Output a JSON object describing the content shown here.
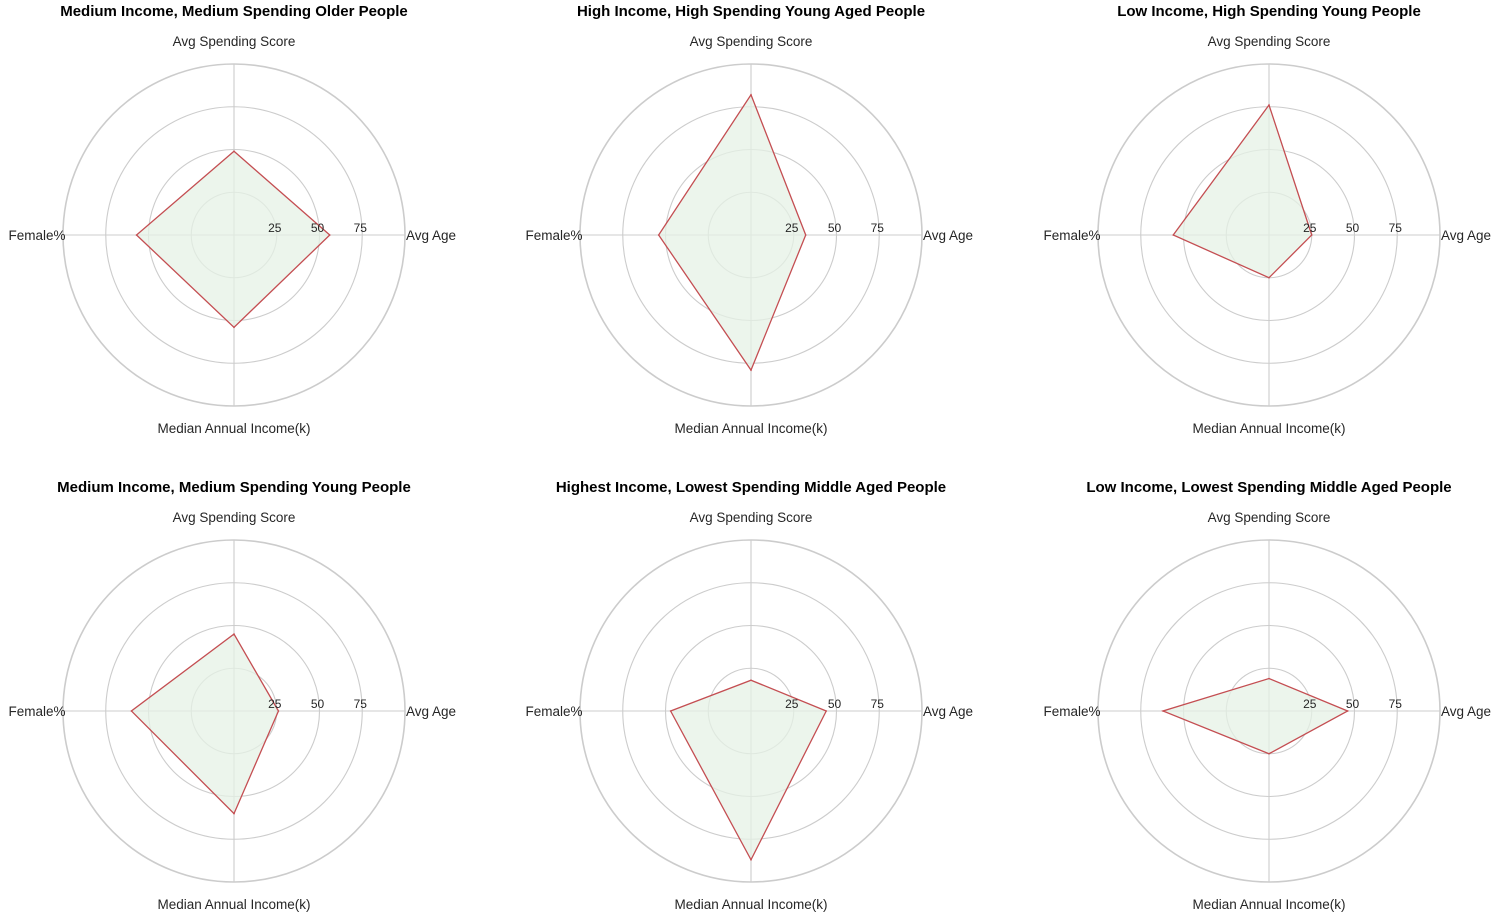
{
  "chart_data": [
    {
      "type": "radar",
      "title": "Medium Income, Medium Spending Older People",
      "axes": [
        "Avg Age",
        "Avg Spending Score",
        "Female%",
        "Median Annual Income(k)"
      ],
      "values": [
        56,
        49,
        57,
        54
      ],
      "r_ticks": [
        "25",
        "50",
        "75"
      ],
      "r_range": [
        0,
        100
      ]
    },
    {
      "type": "radar",
      "title": "High Income, High Spending Young Aged People",
      "axes": [
        "Avg Age",
        "Avg Spending Score",
        "Female%",
        "Median Annual Income(k)"
      ],
      "values": [
        32,
        82,
        54,
        79
      ],
      "r_ticks": [
        "25",
        "50",
        "75"
      ],
      "r_range": [
        0,
        100
      ]
    },
    {
      "type": "radar",
      "title": "Low Income, High Spending Young People",
      "axes": [
        "Avg Age",
        "Avg Spending Score",
        "Female%",
        "Median Annual Income(k)"
      ],
      "values": [
        25,
        76,
        56,
        25
      ],
      "r_ticks": [
        "25",
        "50",
        "75"
      ],
      "r_range": [
        0,
        100
      ]
    },
    {
      "type": "radar",
      "title": "Medium Income, Medium Spending Young People",
      "axes": [
        "Avg Age",
        "Avg Spending Score",
        "Female%",
        "Median Annual Income(k)"
      ],
      "values": [
        26,
        45,
        60,
        60
      ],
      "r_ticks": [
        "25",
        "50",
        "75"
      ],
      "r_range": [
        0,
        100
      ]
    },
    {
      "type": "radar",
      "title": "Highest Income, Lowest Spending Middle Aged People",
      "axes": [
        "Avg Age",
        "Avg Spending Score",
        "Female%",
        "Median Annual Income(k)"
      ],
      "values": [
        44,
        18,
        47,
        87
      ],
      "r_ticks": [
        "25",
        "50",
        "75"
      ],
      "r_range": [
        0,
        100
      ]
    },
    {
      "type": "radar",
      "title": "Low Income, Lowest Spending Middle Aged People",
      "axes": [
        "Avg Age",
        "Avg Spending Score",
        "Female%",
        "Median Annual Income(k)"
      ],
      "values": [
        46,
        19,
        62,
        25
      ],
      "r_ticks": [
        "25",
        "50",
        "75"
      ],
      "r_range": [
        0,
        100
      ]
    }
  ],
  "colors": {
    "line": "#c44e52",
    "fill": "#e6f2e6",
    "grid": "#cccccc",
    "text": "#262626",
    "title": "#000000"
  }
}
